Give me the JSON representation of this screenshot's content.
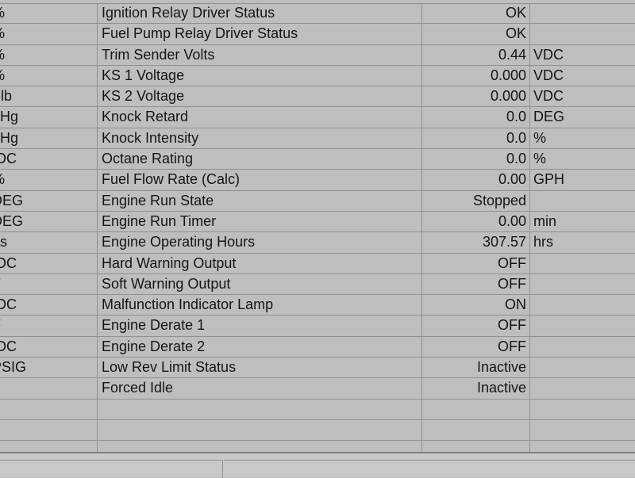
{
  "rows": [
    {
      "left_unit": "%",
      "name": "Ignition Relay Driver Status",
      "value": "OK",
      "unit": ""
    },
    {
      "left_unit": "%",
      "name": "Fuel Pump Relay Driver Status",
      "value": "OK",
      "unit": ""
    },
    {
      "left_unit": "%",
      "name": "Trim Sender Volts",
      "value": "0.44",
      "unit": "VDC"
    },
    {
      "left_unit": "%",
      "name": "KS 1 Voltage",
      "value": "0.000",
      "unit": "VDC"
    },
    {
      "left_unit": "t-lb",
      "name": "KS 2 Voltage",
      "value": "0.000",
      "unit": "VDC"
    },
    {
      "left_unit": "nHg",
      "name": "Knock Retard",
      "value": "0.0",
      "unit": "DEG"
    },
    {
      "left_unit": "nHg",
      "name": "Knock Intensity",
      "value": "0.0",
      "unit": "%"
    },
    {
      "left_unit": "/DC",
      "name": "Octane Rating",
      "value": "0.0",
      "unit": "%"
    },
    {
      "left_unit": "%",
      "name": "Fuel Flow Rate (Calc)",
      "value": "0.00",
      "unit": "GPH"
    },
    {
      "left_unit": "DEG",
      "name": "Engine Run State",
      "value": "Stopped",
      "unit": ""
    },
    {
      "left_unit": "DEG",
      "name": "Engine Run Timer",
      "value": "0.00",
      "unit": "min"
    },
    {
      "left_unit": "ns",
      "name": "Engine Operating Hours",
      "value": "307.57",
      "unit": "hrs"
    },
    {
      "left_unit": "/DC",
      "name": "Hard Warning Output",
      "value": "OFF",
      "unit": ""
    },
    {
      "left_unit": "F",
      "name": "Soft Warning Output",
      "value": "OFF",
      "unit": ""
    },
    {
      "left_unit": "/DC",
      "name": "Malfunction Indicator Lamp",
      "value": "ON",
      "unit": ""
    },
    {
      "left_unit": "F",
      "name": "Engine Derate 1",
      "value": "OFF",
      "unit": ""
    },
    {
      "left_unit": "/DC",
      "name": "Engine Derate 2",
      "value": "OFF",
      "unit": ""
    },
    {
      "left_unit": "PSIG",
      "name": "Low Rev Limit Status",
      "value": "Inactive",
      "unit": ""
    },
    {
      "left_unit": "",
      "name": "Forced Idle",
      "value": "Inactive",
      "unit": ""
    }
  ]
}
